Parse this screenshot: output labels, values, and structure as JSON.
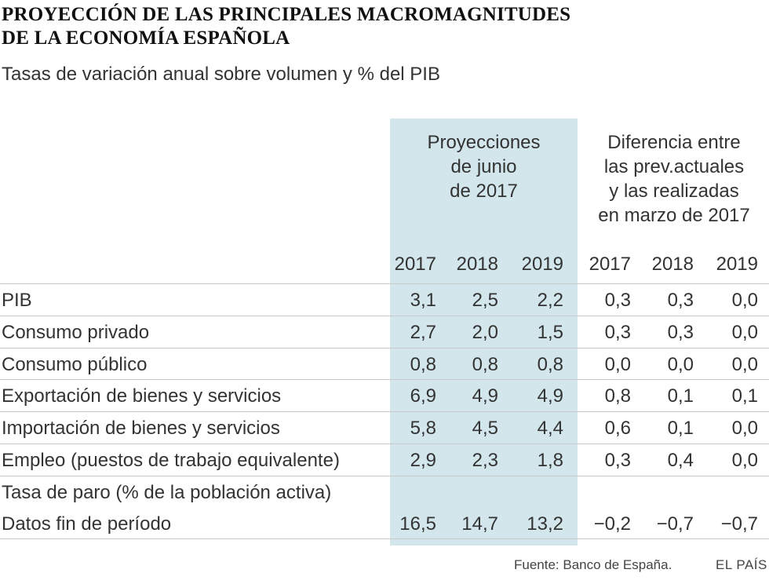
{
  "title_line1": "PROYECCIÓN DE LAS PRINCIPALES MACROMAGNITUDES",
  "title_line2": "DE LA ECONOMÍA ESPAÑOLA",
  "subtitle": "Tasas de variación anual sobre volumen y % del PIB",
  "groups": [
    {
      "lines": [
        "Proyecciones",
        "de junio",
        "de 2017"
      ]
    },
    {
      "lines": [
        "Diferencia entre",
        "las prev.actuales",
        "y las realizadas",
        "en marzo de 2017"
      ]
    }
  ],
  "highlight_color": "#d2e6ec",
  "chart_data": {
    "type": "table",
    "columns": [
      "2017",
      "2018",
      "2019",
      "2017",
      "2018",
      "2019"
    ],
    "rows": [
      {
        "label": "PIB",
        "values": [
          "3,1",
          "2,5",
          "2,2",
          "0,3",
          "0,3",
          "0,0"
        ]
      },
      {
        "label": "Consumo privado",
        "values": [
          "2,7",
          "2,0",
          "1,5",
          "0,3",
          "0,3",
          "0,0"
        ]
      },
      {
        "label": "Consumo público",
        "values": [
          "0,8",
          "0,8",
          "0,8",
          "0,0",
          "0,0",
          "0,0"
        ]
      },
      {
        "label": "Exportación de bienes y servicios",
        "values": [
          "6,9",
          "4,9",
          "4,9",
          "0,8",
          "0,1",
          "0,1"
        ]
      },
      {
        "label": "Importación de bienes y servicios",
        "values": [
          "5,8",
          "4,5",
          "4,4",
          "0,6",
          "0,1",
          "0,0"
        ]
      },
      {
        "label": "Empleo (puestos de trabajo equivalente)",
        "values": [
          "2,9",
          "2,3",
          "1,8",
          "0,3",
          "0,4",
          "0,0"
        ]
      },
      {
        "label": "Tasa de paro (% de la población activa)",
        "values": [
          "",
          "",
          "",
          "",
          "",
          ""
        ]
      },
      {
        "label": "Datos fin de período",
        "values": [
          "16,5",
          "14,7",
          "13,2",
          "−0,2",
          "−0,7",
          "−0,7"
        ]
      }
    ]
  },
  "source": "Fuente: Banco de España.",
  "brand": "EL PAÍS"
}
